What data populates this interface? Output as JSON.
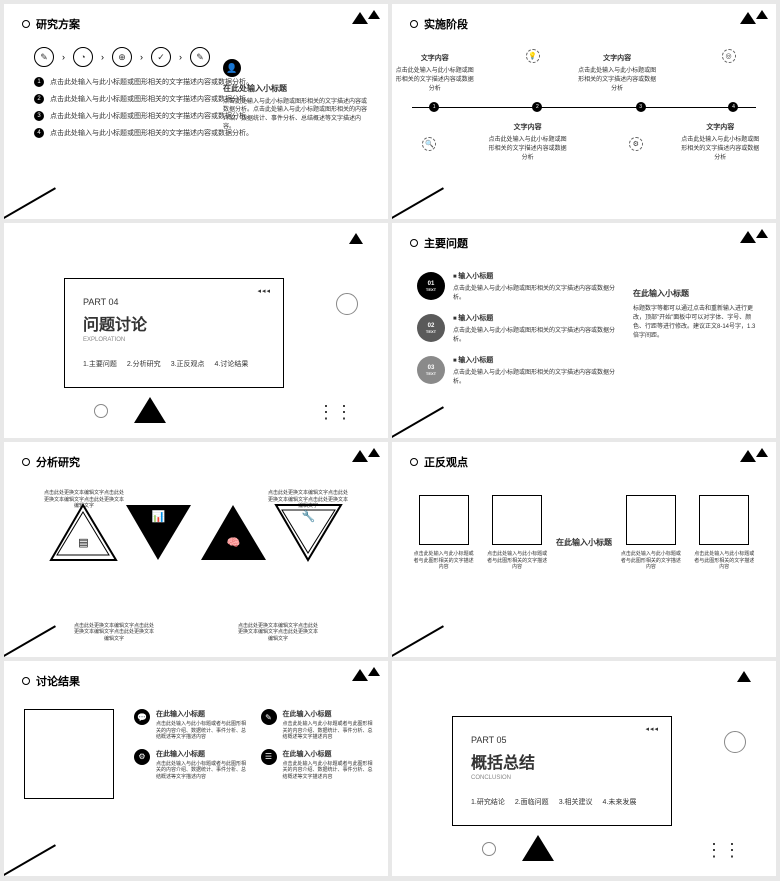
{
  "s1": {
    "title": "研究方案",
    "items": [
      "点击此处输入与此小标题或图形相关的文字描述内容或数据分析。",
      "点击此处输入与此小标题或图形相关的文字描述内容或数据分析。",
      "点击此处输入与此小标题或图形相关的文字描述内容或数据分析。",
      "点击此处输入与此小标题或图形相关的文字描述内容或数据分析。"
    ],
    "rtitle": "在此处输入小标题",
    "rtext": "点击此处输入与此小标题或图形相关的文字描述内容或数据分析。点击此处输入与此小标题或图形相关的内容介绍、数据统计、事件分析、总结概述等文字描述内容。"
  },
  "s2": {
    "title": "实施阶段",
    "nodes": [
      {
        "lbl": "文字内容",
        "txt": "点击此处输入与此小标题或图形相关的文字描述内容或数据分析"
      },
      {
        "lbl": "文字内容",
        "txt": "点击此处输入与此小标题或图形相关的文字描述内容或数据分析"
      },
      {
        "lbl": "文字内容",
        "txt": "点击此处输入与此小标题或图形相关的文字描述内容或数据分析"
      },
      {
        "lbl": "文字内容",
        "txt": "点击此处输入与此小标题或图形相关的文字描述内容或数据分析"
      }
    ]
  },
  "s3": {
    "num": "PART 04",
    "title": "问题讨论",
    "sub": "EXPLORATION",
    "items": [
      "1.主要问题",
      "2.分析研究",
      "3.正反观点",
      "4.讨论结果"
    ]
  },
  "s4": {
    "title": "主要问题",
    "boxes": [
      {
        "n": "01",
        "s": "TEXT",
        "c": "#000",
        "t": "输入小标题",
        "d": "点击此处输入与此小标题或图形相关的文字描述内容或数据分析。"
      },
      {
        "n": "02",
        "s": "TEXT",
        "c": "#5a5a5a",
        "t": "输入小标题",
        "d": "点击此处输入与此小标题或图形相关的文字描述内容或数据分析。"
      },
      {
        "n": "03",
        "s": "TEXT",
        "c": "#8a8a8a",
        "t": "输入小标题",
        "d": "点击此处输入与此小标题或图形相关的文字描述内容或数据分析。"
      }
    ],
    "rtitle": "在此输入小标题",
    "rtext": "标题数字等都可以通过点击和重新输入进行更改，顶部\"开始\"面板中可以对字体、字号、颜色、行距等进行修改。建议正文8-14号字，1.3倍字间距。"
  },
  "s5": {
    "title": "分析研究",
    "txt": "点击此处更换文本编辑文字点击此处更换文本编辑文字点击此处更换文本编辑文字"
  },
  "s6": {
    "title": "正反观点",
    "mid": "在此输入小标题",
    "col": "点击此处输入与此小标题或者与此图形相关的文字描述内容"
  },
  "s7": {
    "title": "讨论结果",
    "items": [
      {
        "t": "在此输入小标题",
        "d": "点击此处输入与此小标题或者与此图形相关的内容介绍、数据统计、事件分析、总结概述等文字描述内容"
      },
      {
        "t": "在此输入小标题",
        "d": "点击此处输入与此小标题或者与此图形相关的内容介绍、数据统计、事件分析、总结概述等文字描述内容"
      },
      {
        "t": "在此输入小标题",
        "d": "点击此处输入与此小标题或者与此图形相关的内容介绍、数据统计、事件分析、总结概述等文字描述内容"
      },
      {
        "t": "在此输入小标题",
        "d": "点击此处输入与此小标题或者与此图形相关的内容介绍、数据统计、事件分析、总结概述等文字描述内容"
      }
    ]
  },
  "s8": {
    "num": "PART 05",
    "title": "概括总结",
    "sub": "CONCLUSION",
    "items": [
      "1.研究结论",
      "2.面临问题",
      "3.相关建议",
      "4.未来发展"
    ]
  }
}
